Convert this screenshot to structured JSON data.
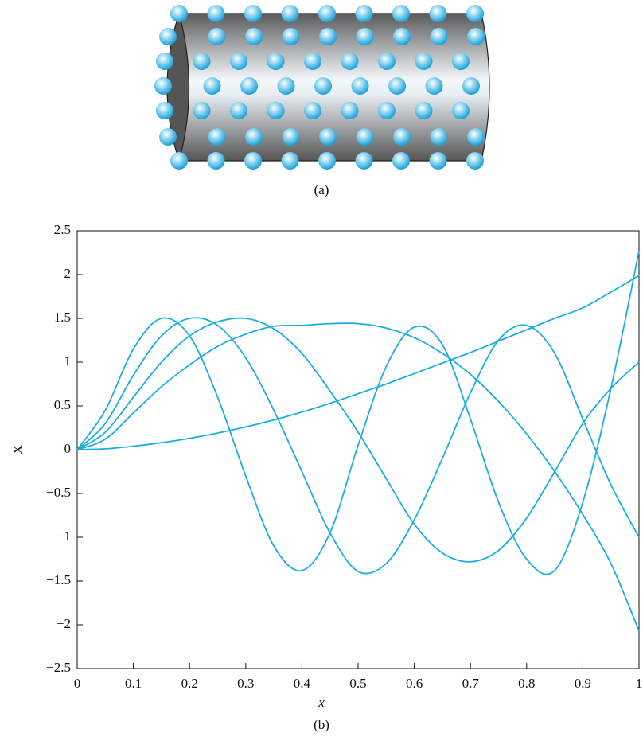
{
  "chart_data": {
    "type": "line",
    "caption_top": "(a)",
    "caption": "(b)",
    "xlabel": "x",
    "ylabel": "X",
    "x": [
      0,
      0.05,
      0.1,
      0.15,
      0.2,
      0.25,
      0.3,
      0.35,
      0.4,
      0.45,
      0.5,
      0.55,
      0.6,
      0.65,
      0.7,
      0.75,
      0.8,
      0.85,
      0.9,
      0.95,
      1
    ],
    "series": [
      {
        "color": "#1aaee0",
        "values": [
          0,
          0.01,
          0.04,
          0.08,
          0.13,
          0.19,
          0.26,
          0.34,
          0.43,
          0.53,
          0.64,
          0.75,
          0.87,
          0.99,
          1.11,
          1.24,
          1.37,
          1.5,
          1.62,
          1.8,
          1.99
        ]
      },
      {
        "color": "#1aaee0",
        "values": [
          0,
          0.12,
          0.42,
          0.72,
          0.97,
          1.18,
          1.32,
          1.41,
          1.42,
          1.44,
          1.44,
          1.39,
          1.28,
          1.1,
          0.86,
          0.55,
          0.18,
          -0.25,
          -0.74,
          -1.3,
          -2.07
        ]
      },
      {
        "color": "#1aaee0",
        "values": [
          0,
          0.2,
          0.6,
          1.0,
          1.3,
          1.46,
          1.5,
          1.38,
          1.1,
          0.67,
          0.2,
          -0.33,
          -0.85,
          -1.18,
          -1.28,
          -1.15,
          -0.78,
          -0.25,
          0.3,
          0.7,
          1.0
        ]
      },
      {
        "color": "#1aaee0",
        "values": [
          0,
          0.3,
          0.85,
          1.3,
          1.5,
          1.42,
          1.05,
          0.45,
          -0.25,
          -0.95,
          -1.39,
          -1.3,
          -0.8,
          -0.1,
          0.65,
          1.25,
          1.42,
          1.1,
          0.35,
          -0.4,
          -1.0
        ]
      },
      {
        "color": "#1aaee0",
        "values": [
          0,
          0.45,
          1.15,
          1.5,
          1.3,
          0.6,
          -0.3,
          -1.1,
          -1.38,
          -0.95,
          0.05,
          0.95,
          1.4,
          1.2,
          0.35,
          -0.6,
          -1.25,
          -1.38,
          -0.6,
          0.7,
          2.27
        ]
      }
    ],
    "xlim": [
      0,
      1
    ],
    "xticks": [
      0,
      0.1,
      0.2,
      0.3,
      0.4,
      0.5,
      0.6,
      0.7,
      0.8,
      0.9,
      1
    ],
    "ylim": [
      -2.5,
      2.5
    ],
    "yticks": [
      {
        "value": -2.5,
        "label": "−2.5"
      },
      {
        "value": -2,
        "label": "−2"
      },
      {
        "value": -1.5,
        "label": "−1.5"
      },
      {
        "value": -1,
        "label": "−1"
      },
      {
        "value": -0.5,
        "label": "−0.5"
      },
      0,
      0.5,
      1,
      1.5,
      2,
      2.5
    ],
    "grid": false
  }
}
